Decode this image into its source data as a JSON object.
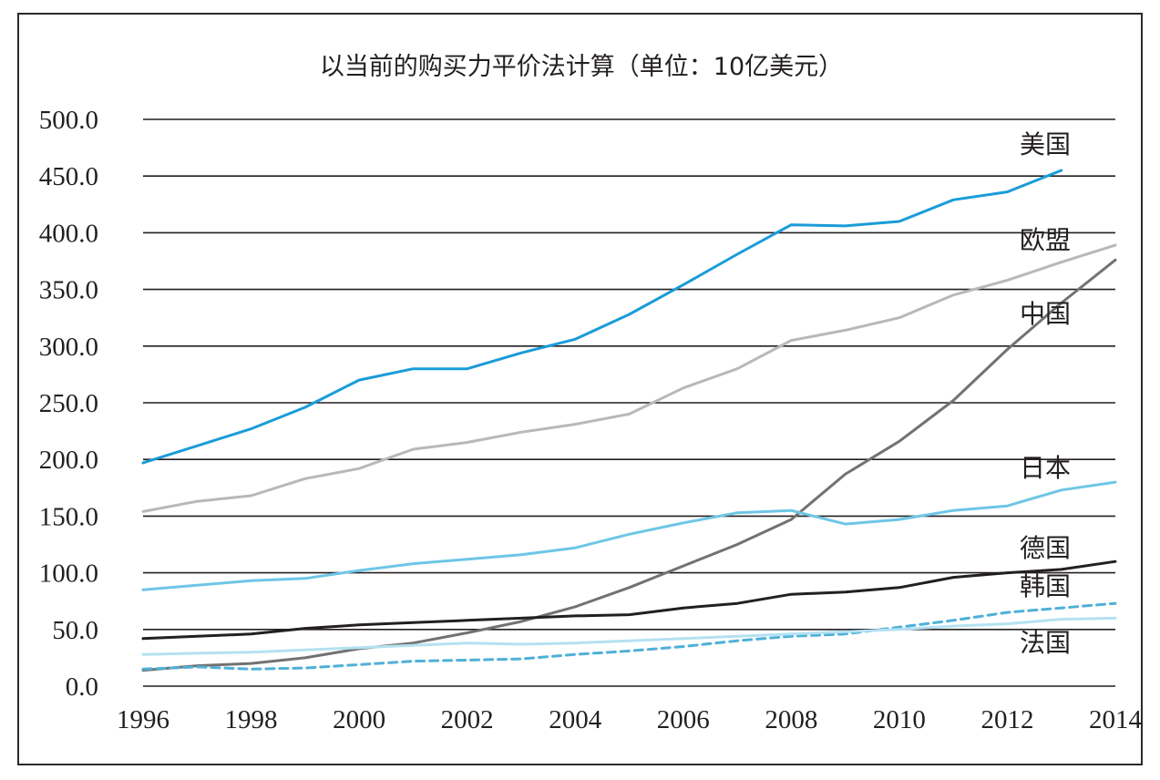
{
  "chart_data": {
    "type": "line",
    "title": "以当前的购买力平价法计算（单位：10亿美元）",
    "xlabel": "",
    "ylabel": "",
    "x": [
      1996,
      1997,
      1998,
      1999,
      2000,
      2001,
      2002,
      2003,
      2004,
      2005,
      2006,
      2007,
      2008,
      2009,
      2010,
      2011,
      2012,
      2013,
      2014
    ],
    "x_tick_labels": [
      "1996",
      "1998",
      "2000",
      "2002",
      "2004",
      "2006",
      "2008",
      "2010",
      "2012",
      "2014"
    ],
    "y_tick_labels": [
      "500.0",
      "450.0",
      "400.0",
      "350.0",
      "300.0",
      "250.0",
      "200.0",
      "150.0",
      "100.0",
      "50.0",
      "0.0"
    ],
    "ylim": [
      0,
      500
    ],
    "xlim": [
      1996,
      2014
    ],
    "grid": "horizontal",
    "legend": "inline-right",
    "series": [
      {
        "name": "美国",
        "color": "#1a9cd8",
        "dash": false,
        "values": [
          197,
          212,
          227,
          246,
          270,
          280,
          280,
          294,
          306,
          328,
          354,
          381,
          407,
          406,
          410,
          429,
          436,
          455,
          null
        ]
      },
      {
        "name": "欧盟",
        "color": "#b8b8b8",
        "dash": false,
        "values": [
          154,
          163,
          168,
          183,
          192,
          209,
          215,
          224,
          231,
          240,
          263,
          280,
          305,
          314,
          325,
          345,
          358,
          374,
          389
        ]
      },
      {
        "name": "中国",
        "color": "#727272",
        "dash": false,
        "values": [
          14,
          18,
          20,
          25,
          33,
          38,
          47,
          57,
          70,
          87,
          106,
          125,
          147,
          187,
          216,
          252,
          297,
          338,
          376
        ]
      },
      {
        "name": "日本",
        "color": "#6ec6e6",
        "dash": false,
        "values": [
          85,
          89,
          93,
          95,
          102,
          108,
          112,
          116,
          122,
          134,
          144,
          153,
          155,
          143,
          147,
          155,
          159,
          173,
          180
        ]
      },
      {
        "name": "德国",
        "color": "#231f20",
        "dash": false,
        "values": [
          42,
          44,
          46,
          51,
          54,
          56,
          58,
          60,
          62,
          63,
          69,
          73,
          81,
          83,
          87,
          96,
          100,
          103,
          110
        ]
      },
      {
        "name": "韩国",
        "color": "#4fb0d8",
        "dash": true,
        "values": [
          15,
          17,
          15,
          16,
          19,
          22,
          23,
          24,
          28,
          31,
          35,
          40,
          44,
          46,
          52,
          58,
          65,
          69,
          73
        ]
      },
      {
        "name": "法国",
        "color": "#b4e1f2",
        "dash": false,
        "values": [
          28,
          29,
          30,
          32,
          34,
          36,
          38,
          37,
          38,
          40,
          42,
          44,
          46,
          48,
          50,
          53,
          55,
          59,
          60
        ]
      }
    ]
  }
}
